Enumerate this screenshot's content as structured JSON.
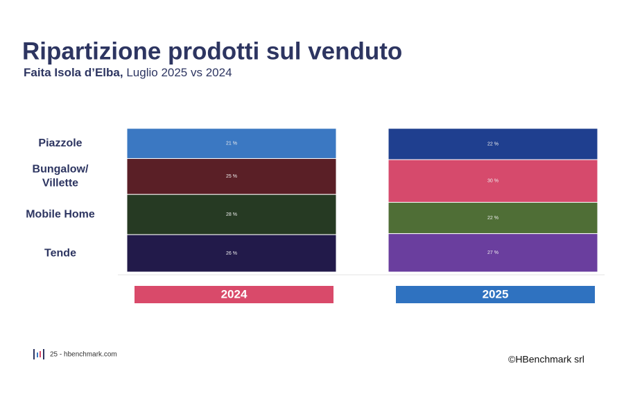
{
  "chart_data": {
    "type": "bar",
    "stacked": true,
    "title": "Ripartizione prodotti sul venduto",
    "subtitle_location": "Faita Isola d’Elba,",
    "subtitle_period": "Luglio 2025 vs 2024",
    "categories": [
      "2024",
      "2025"
    ],
    "category_colors": [
      "#d94a6a",
      "#2f72c0"
    ],
    "series": [
      {
        "name": "Piazzole",
        "colors": [
          "#3b78c2",
          "#1f3f8f"
        ],
        "values": [
          21,
          22
        ],
        "value_labels": [
          "21 %",
          "22 %"
        ]
      },
      {
        "name": "Bungalow/ Villette",
        "colors": [
          "#5a1f26",
          "#d64a6c"
        ],
        "values": [
          25,
          30
        ],
        "value_labels": [
          "25 %",
          "30 %"
        ]
      },
      {
        "name": "Mobile Home",
        "colors": [
          "#263a23",
          "#4f6e36"
        ],
        "values": [
          28,
          22
        ],
        "value_labels": [
          "28 %",
          "22 %"
        ]
      },
      {
        "name": "Tende",
        "colors": [
          "#221a4a",
          "#6a3e9e"
        ],
        "values": [
          26,
          27
        ],
        "value_labels": [
          "26 %",
          "27 %"
        ]
      }
    ],
    "footer_source": "25 - hbenchmark.com",
    "footer_copyright": "©HBenchmark srl"
  }
}
